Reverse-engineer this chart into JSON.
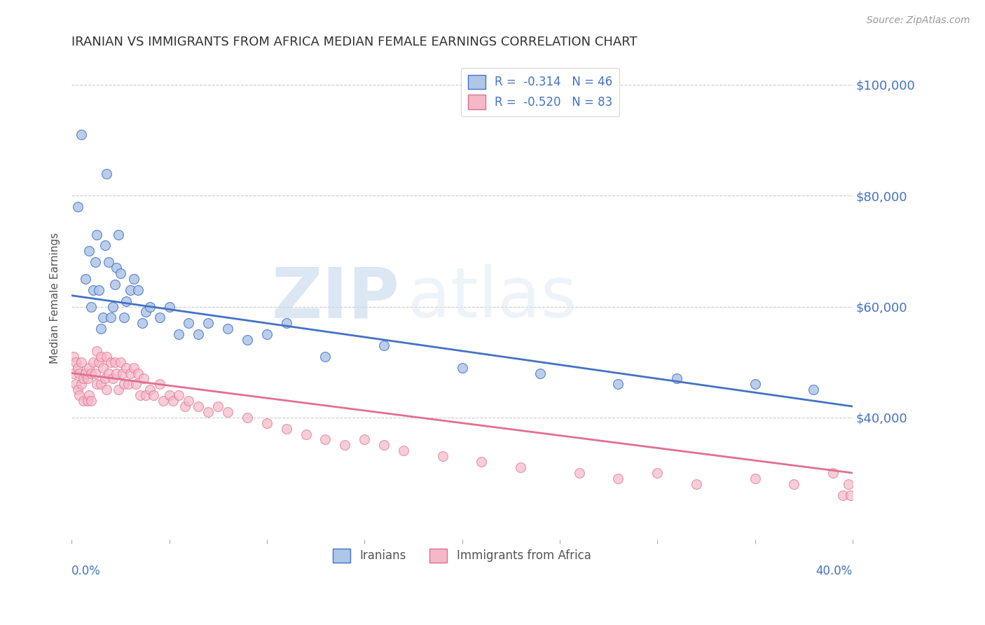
{
  "title": "IRANIAN VS IMMIGRANTS FROM AFRICA MEDIAN FEMALE EARNINGS CORRELATION CHART",
  "source": "Source: ZipAtlas.com",
  "ylabel": "Median Female Earnings",
  "watermark": "ZIPatlas",
  "legend_stat_labels": [
    "R =  -0.314   N = 46",
    "R =  -0.520   N = 83"
  ],
  "legend_bottom_labels": [
    "Iranians",
    "Immigrants from Africa"
  ],
  "blue_fill": "#aec6e8",
  "blue_edge": "#4472c4",
  "pink_fill": "#f4b8c8",
  "pink_edge": "#e07090",
  "xmin": 0.0,
  "xmax": 0.4,
  "ymin": 18000,
  "ymax": 105000,
  "yticks": [
    40000,
    60000,
    80000,
    100000
  ],
  "ytick_labels": [
    "$40,000",
    "$60,000",
    "$80,000",
    "$100,000"
  ],
  "blue_line": {
    "x0": 0.0,
    "x1": 0.4,
    "y0": 62000,
    "y1": 42000
  },
  "pink_line": {
    "x0": 0.0,
    "x1": 0.4,
    "y0": 48000,
    "y1": 30000
  },
  "blue_x": [
    0.003,
    0.005,
    0.007,
    0.009,
    0.01,
    0.011,
    0.012,
    0.013,
    0.014,
    0.015,
    0.016,
    0.017,
    0.018,
    0.019,
    0.02,
    0.021,
    0.022,
    0.023,
    0.024,
    0.025,
    0.027,
    0.028,
    0.03,
    0.032,
    0.034,
    0.036,
    0.038,
    0.04,
    0.045,
    0.05,
    0.055,
    0.06,
    0.065,
    0.07,
    0.08,
    0.09,
    0.1,
    0.11,
    0.13,
    0.16,
    0.2,
    0.24,
    0.28,
    0.31,
    0.35,
    0.38
  ],
  "blue_y": [
    78000,
    91000,
    65000,
    70000,
    60000,
    63000,
    68000,
    73000,
    63000,
    56000,
    58000,
    71000,
    84000,
    68000,
    58000,
    60000,
    64000,
    67000,
    73000,
    66000,
    58000,
    61000,
    63000,
    65000,
    63000,
    57000,
    59000,
    60000,
    58000,
    60000,
    55000,
    57000,
    55000,
    57000,
    56000,
    54000,
    55000,
    57000,
    51000,
    53000,
    49000,
    48000,
    46000,
    47000,
    46000,
    45000
  ],
  "pink_x": [
    0.001,
    0.001,
    0.002,
    0.002,
    0.003,
    0.003,
    0.004,
    0.004,
    0.005,
    0.005,
    0.006,
    0.006,
    0.007,
    0.008,
    0.008,
    0.009,
    0.009,
    0.01,
    0.01,
    0.011,
    0.012,
    0.013,
    0.013,
    0.014,
    0.015,
    0.015,
    0.016,
    0.017,
    0.018,
    0.018,
    0.019,
    0.02,
    0.021,
    0.022,
    0.023,
    0.024,
    0.025,
    0.026,
    0.027,
    0.028,
    0.029,
    0.03,
    0.032,
    0.033,
    0.034,
    0.035,
    0.037,
    0.038,
    0.04,
    0.042,
    0.045,
    0.047,
    0.05,
    0.052,
    0.055,
    0.058,
    0.06,
    0.065,
    0.07,
    0.075,
    0.08,
    0.09,
    0.1,
    0.11,
    0.12,
    0.13,
    0.14,
    0.15,
    0.16,
    0.17,
    0.19,
    0.21,
    0.23,
    0.26,
    0.28,
    0.3,
    0.32,
    0.35,
    0.37,
    0.39,
    0.395,
    0.398,
    0.399
  ],
  "pink_y": [
    48000,
    51000,
    50000,
    46000,
    49000,
    45000,
    48000,
    44000,
    50000,
    46000,
    47000,
    43000,
    48000,
    47000,
    43000,
    49000,
    44000,
    48000,
    43000,
    50000,
    48000,
    52000,
    46000,
    50000,
    51000,
    46000,
    49000,
    47000,
    51000,
    45000,
    48000,
    50000,
    47000,
    50000,
    48000,
    45000,
    50000,
    48000,
    46000,
    49000,
    46000,
    48000,
    49000,
    46000,
    48000,
    44000,
    47000,
    44000,
    45000,
    44000,
    46000,
    43000,
    44000,
    43000,
    44000,
    42000,
    43000,
    42000,
    41000,
    42000,
    41000,
    40000,
    39000,
    38000,
    37000,
    36000,
    35000,
    36000,
    35000,
    34000,
    33000,
    32000,
    31000,
    30000,
    29000,
    30000,
    28000,
    29000,
    28000,
    30000,
    26000,
    28000,
    26000
  ],
  "grid_color": "#cccccc",
  "background_color": "#ffffff",
  "title_color": "#333333",
  "axis_color": "#4472c4",
  "ytick_color": "#4472c4"
}
